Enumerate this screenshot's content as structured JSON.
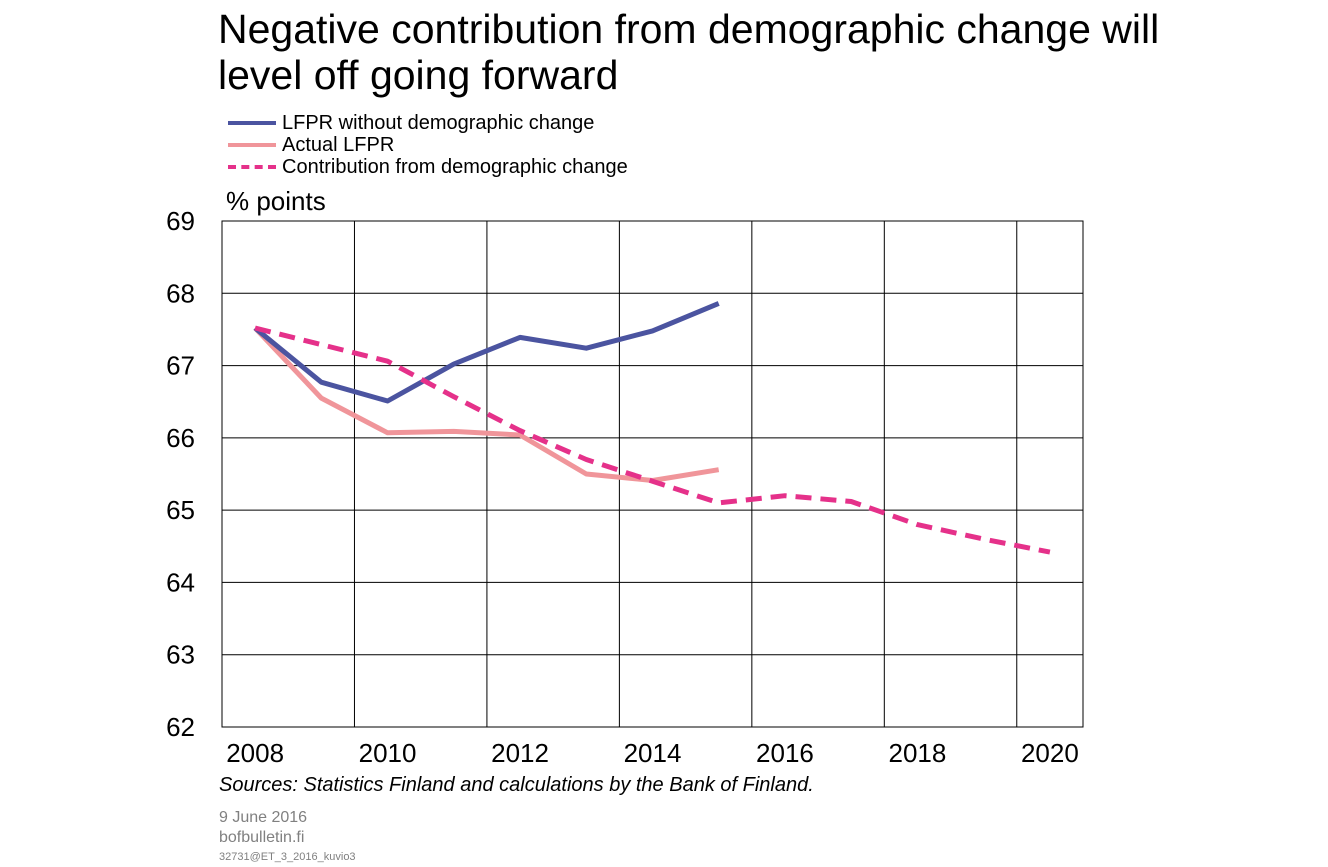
{
  "title": "Negative contribution from demographic change will level off going forward",
  "y_unit": "% points",
  "sources": "Sources: Statistics Finland and calculations by the Bank of Finland.",
  "date": "9 June 2016",
  "site": "bofbulletin.fi",
  "code": "32731@ET_3_2016_kuvio3",
  "colors": {
    "lfpr_without_demographic": "#4b54a0",
    "actual_lfpr": "#f0959a",
    "contribution": "#e5318a",
    "grid": "#000000"
  },
  "chart_data": {
    "type": "line",
    "title": "Negative contribution from demographic change will level off going forward",
    "ylabel": "% points",
    "xlim": [
      2008,
      2021
    ],
    "ylim": [
      62,
      69
    ],
    "x_ticks": [
      "2008",
      "2010",
      "2012",
      "2014",
      "2016",
      "2018",
      "2020"
    ],
    "y_ticks": [
      "62",
      "63",
      "64",
      "65",
      "66",
      "67",
      "68",
      "69"
    ],
    "grid": true,
    "legend_position": "top-left",
    "series": [
      {
        "name": "LFPR without demographic change",
        "style": "solid",
        "x": [
          2008.5,
          2009.5,
          2010.5,
          2011.5,
          2012.5,
          2013.5,
          2014.5,
          2015.5
        ],
        "values": [
          67.52,
          66.77,
          66.51,
          67.02,
          67.39,
          67.24,
          67.48,
          67.86
        ]
      },
      {
        "name": "Actual LFPR",
        "style": "solid",
        "x": [
          2008.5,
          2009.5,
          2010.5,
          2011.5,
          2012.5,
          2013.5,
          2014.5,
          2015.5
        ],
        "values": [
          67.52,
          66.55,
          66.07,
          66.09,
          66.04,
          65.5,
          65.41,
          65.56
        ]
      },
      {
        "name": "Contribution from demographic change",
        "style": "dashed",
        "x": [
          2008.5,
          2009.5,
          2010.5,
          2011.5,
          2012.5,
          2013.5,
          2014.5,
          2015.5,
          2016.5,
          2017.5,
          2018.5,
          2019.5,
          2020.5
        ],
        "values": [
          67.52,
          67.29,
          67.06,
          66.57,
          66.1,
          65.7,
          65.4,
          65.1,
          65.2,
          65.12,
          64.8,
          64.6,
          64.42
        ]
      }
    ]
  }
}
